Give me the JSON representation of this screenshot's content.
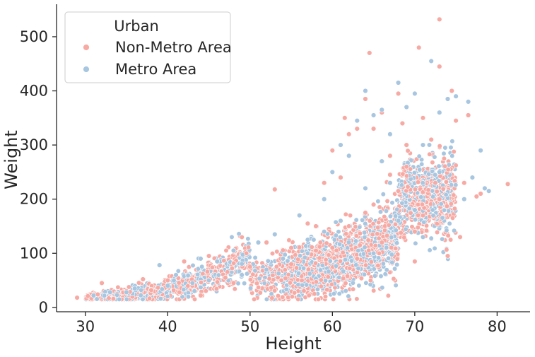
{
  "chart_data": {
    "type": "scatter",
    "title": "",
    "xlabel": "Height",
    "ylabel": "Weight",
    "xlim": [
      26.5,
      84
    ],
    "ylim": [
      -8,
      560
    ],
    "xticks": [
      30,
      40,
      50,
      60,
      70,
      80
    ],
    "yticks": [
      0,
      100,
      200,
      300,
      400,
      500
    ],
    "grid": false,
    "legend": {
      "title": "Urban",
      "position": "upper-left",
      "entries": [
        "Non-Metro Area",
        "Metro Area"
      ]
    },
    "series": [
      {
        "name": "Non-Metro Area",
        "color": "#f7aaa4",
        "points": [
          [
            29,
            18
          ],
          [
            30.3,
            21
          ],
          [
            31.5,
            24
          ],
          [
            32,
            45
          ],
          [
            33,
            26
          ],
          [
            35,
            30
          ],
          [
            37,
            52
          ],
          [
            40,
            50
          ],
          [
            42,
            85
          ],
          [
            44,
            22
          ],
          [
            45,
            95
          ],
          [
            47,
            55
          ],
          [
            50,
            75
          ],
          [
            52,
            120
          ],
          [
            53,
            218
          ],
          [
            55,
            110
          ],
          [
            57,
            155
          ],
          [
            58,
            105
          ],
          [
            59,
            230
          ],
          [
            60,
            290
          ],
          [
            61,
            240
          ],
          [
            61.5,
            350
          ],
          [
            62,
            320
          ],
          [
            63,
            330
          ],
          [
            64,
            385
          ],
          [
            64.5,
            470
          ],
          [
            65,
            330
          ],
          [
            66,
            360
          ],
          [
            67,
            245
          ],
          [
            68,
            395
          ],
          [
            68.5,
            340
          ],
          [
            69,
            300
          ],
          [
            70,
            85
          ],
          [
            70.5,
            480
          ],
          [
            71,
            350
          ],
          [
            72,
            310
          ],
          [
            72.5,
            230
          ],
          [
            73,
            532
          ],
          [
            73,
            445
          ],
          [
            74,
            95
          ],
          [
            74.5,
            400
          ],
          [
            75,
            345
          ],
          [
            75.5,
            130
          ],
          [
            76,
            230
          ],
          [
            76.5,
            355
          ],
          [
            77,
            240
          ],
          [
            77.5,
            205
          ],
          [
            78,
            210
          ],
          [
            81.3,
            228
          ],
          [
            62,
            150
          ],
          [
            65,
            190
          ],
          [
            68,
            215
          ],
          [
            71,
            170
          ],
          [
            63,
            90
          ],
          [
            66,
            120
          ],
          [
            69,
            260
          ],
          [
            67,
            280
          ],
          [
            60,
            110
          ],
          [
            58,
            150
          ],
          [
            55,
            80
          ],
          [
            48,
            45
          ],
          [
            43,
            40
          ],
          [
            38,
            32
          ],
          [
            73,
            200
          ],
          [
            64,
            175
          ],
          [
            70,
            140
          ]
        ]
      },
      {
        "name": "Metro Area",
        "color": "#a8c6e0",
        "points": [
          [
            31,
            22
          ],
          [
            33,
            28
          ],
          [
            36,
            35
          ],
          [
            39,
            78
          ],
          [
            41,
            60
          ],
          [
            43,
            45
          ],
          [
            44,
            90
          ],
          [
            46,
            85
          ],
          [
            48,
            105
          ],
          [
            51,
            120
          ],
          [
            53,
            135
          ],
          [
            54,
            90
          ],
          [
            56,
            170
          ],
          [
            57,
            125
          ],
          [
            59,
            200
          ],
          [
            60,
            250
          ],
          [
            61,
            300
          ],
          [
            62,
            280
          ],
          [
            63,
            345
          ],
          [
            64,
            400
          ],
          [
            65,
            355
          ],
          [
            66,
            365
          ],
          [
            67,
            320
          ],
          [
            68,
            415
          ],
          [
            69,
            370
          ],
          [
            70,
            395
          ],
          [
            71,
            300
          ],
          [
            72,
            455
          ],
          [
            73,
            360
          ],
          [
            74,
            385
          ],
          [
            75,
            390
          ],
          [
            76,
            200
          ],
          [
            76.5,
            380
          ],
          [
            77,
            240
          ],
          [
            78,
            290
          ],
          [
            78.5,
            220
          ],
          [
            79,
            215
          ],
          [
            61,
            160
          ],
          [
            64,
            220
          ],
          [
            67,
            230
          ],
          [
            70,
            180
          ],
          [
            73,
            250
          ],
          [
            62,
            120
          ],
          [
            65,
            100
          ],
          [
            68,
            160
          ],
          [
            71,
            130
          ],
          [
            66,
            270
          ],
          [
            59,
            140
          ],
          [
            57,
            100
          ],
          [
            52,
            70
          ],
          [
            49,
            60
          ],
          [
            45,
            50
          ],
          [
            40,
            40
          ],
          [
            35,
            28
          ]
        ]
      }
    ]
  }
}
